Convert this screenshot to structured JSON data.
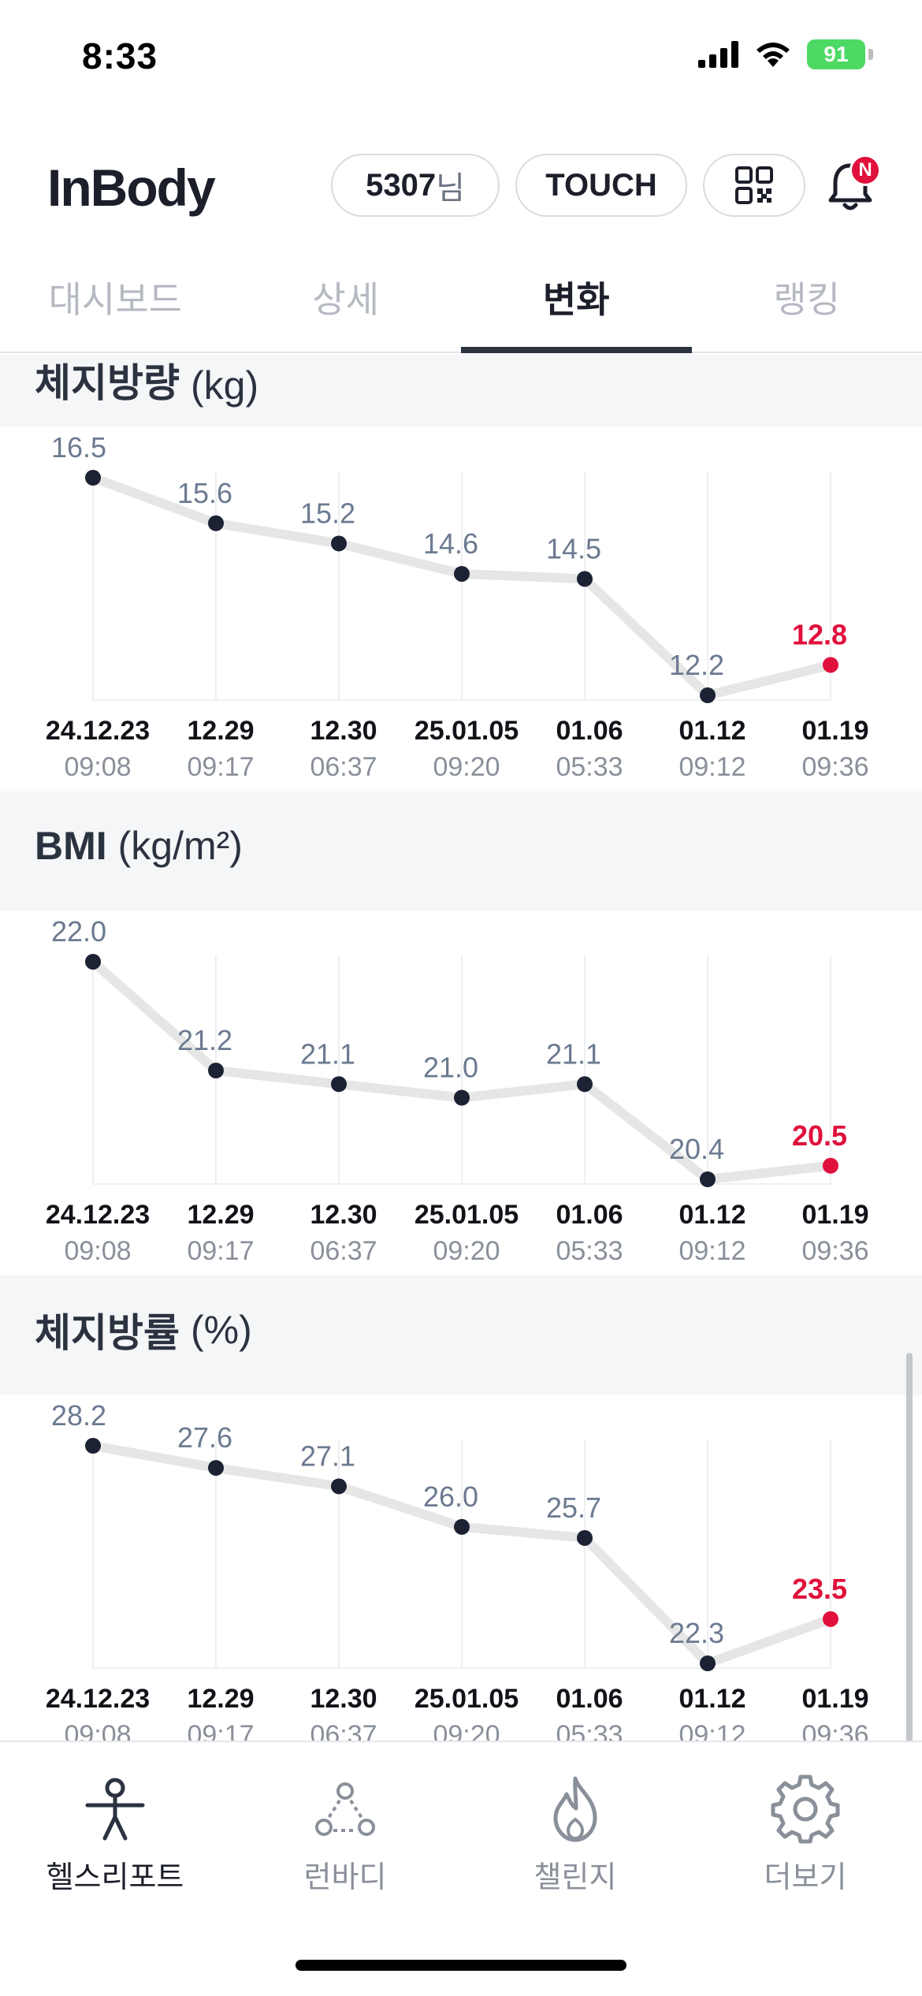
{
  "status_bar": {
    "time": "8:33",
    "battery": "91"
  },
  "header": {
    "logo": "InBody",
    "user_id": "5307",
    "user_suffix": "님",
    "touch_label": "TOUCH",
    "notification_badge": "N"
  },
  "tabs": [
    {
      "label": "대시보드",
      "active": false
    },
    {
      "label": "상세",
      "active": false
    },
    {
      "label": "변화",
      "active": true
    },
    {
      "label": "랭킹",
      "active": false
    }
  ],
  "colors": {
    "accent": "#e0113c",
    "point": "#1c2233",
    "line": "#e6e6e6",
    "value_text": "#6b7a90"
  },
  "chart_data": [
    {
      "type": "line",
      "title": "체지방량",
      "unit": "(kg)",
      "x_dates": [
        "24.12.23",
        "12.29",
        "12.30",
        "25.01.05",
        "01.06",
        "01.12",
        "01.19"
      ],
      "x_times": [
        "09:08",
        "09:17",
        "06:37",
        "09:20",
        "05:33",
        "09:12",
        "09:36"
      ],
      "values": [
        16.5,
        15.6,
        15.2,
        14.6,
        14.5,
        12.2,
        12.8
      ],
      "labels": [
        "16.5",
        "15.6",
        "15.2",
        "14.6",
        "14.5",
        "12.2",
        "12.8"
      ],
      "highlight_last": true
    },
    {
      "type": "line",
      "title": "BMI",
      "unit": "(kg/m²)",
      "x_dates": [
        "24.12.23",
        "12.29",
        "12.30",
        "25.01.05",
        "01.06",
        "01.12",
        "01.19"
      ],
      "x_times": [
        "09:08",
        "09:17",
        "06:37",
        "09:20",
        "05:33",
        "09:12",
        "09:36"
      ],
      "values": [
        22.0,
        21.2,
        21.1,
        21.0,
        21.1,
        20.4,
        20.5
      ],
      "labels": [
        "22.0",
        "21.2",
        "21.1",
        "21.0",
        "21.1",
        "20.4",
        "20.5"
      ],
      "highlight_last": true
    },
    {
      "type": "line",
      "title": "체지방률",
      "unit": "(%)",
      "x_dates": [
        "24.12.23",
        "12.29",
        "12.30",
        "25.01.05",
        "01.06",
        "01.12",
        "01.19"
      ],
      "x_times": [
        "09:08",
        "09:17",
        "06:37",
        "09:20",
        "05:33",
        "09:12",
        "09:36"
      ],
      "values": [
        28.2,
        27.6,
        27.1,
        26.0,
        25.7,
        22.3,
        23.5
      ],
      "labels": [
        "28.2",
        "27.6",
        "27.1",
        "26.0",
        "25.7",
        "22.3",
        "23.5"
      ],
      "highlight_last": true
    }
  ],
  "bottom_nav": [
    {
      "label": "헬스리포트",
      "icon": "health-report-icon",
      "active": true
    },
    {
      "label": "런바디",
      "icon": "runbody-icon",
      "active": false
    },
    {
      "label": "챌린지",
      "icon": "challenge-flame-icon",
      "active": false
    },
    {
      "label": "더보기",
      "icon": "settings-gear-icon",
      "active": false
    }
  ]
}
